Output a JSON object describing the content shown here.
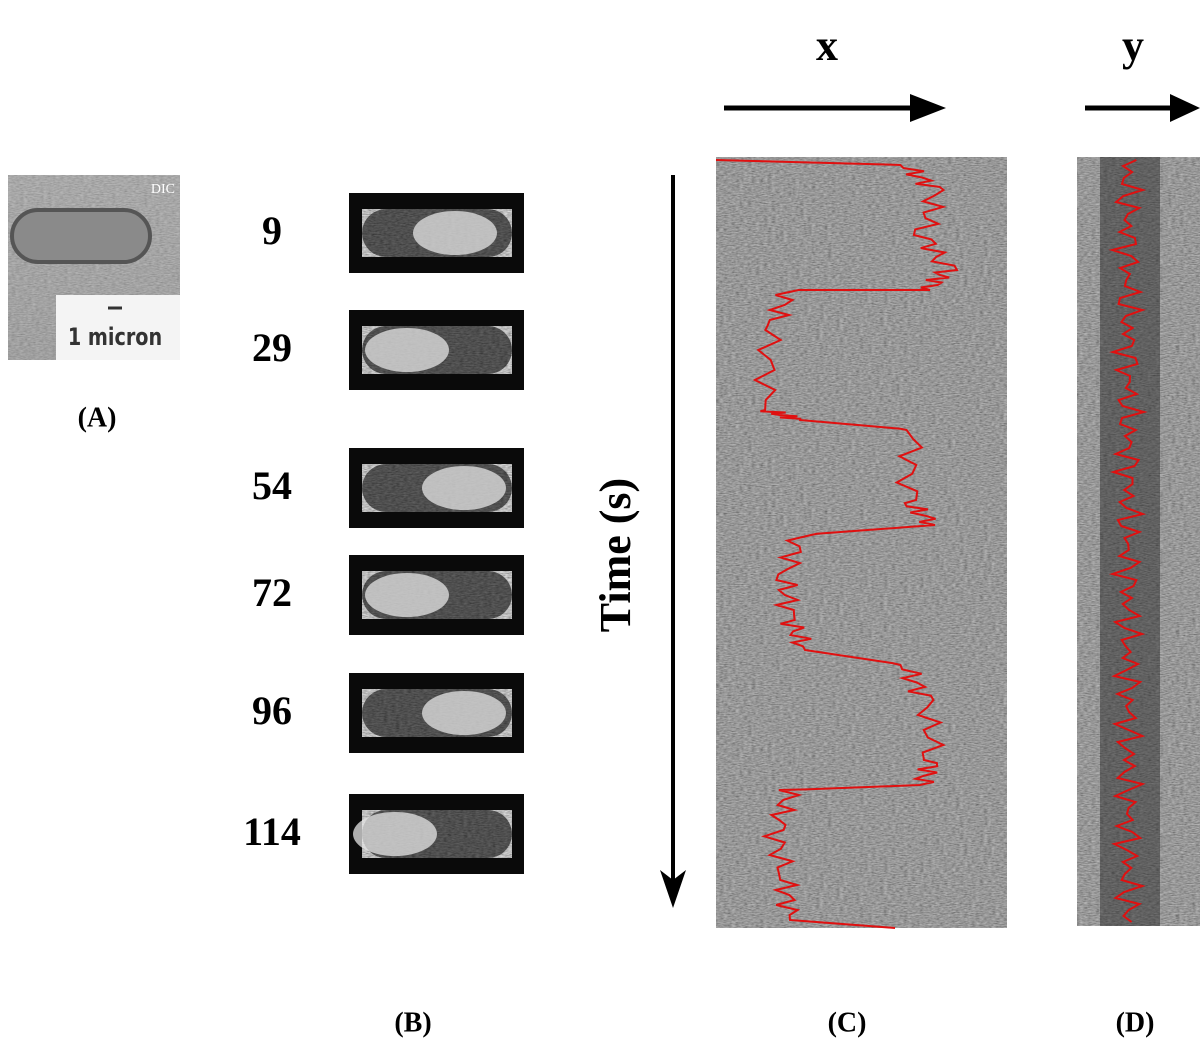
{
  "panel_a": {
    "image_label": "DIC",
    "scale_label": "1 micron",
    "label": "(A)"
  },
  "panel_b": {
    "label": "(B)",
    "times": [
      9,
      29,
      54,
      72,
      96,
      114
    ]
  },
  "time_axis_label": "Time (s)",
  "panel_c": {
    "axis_label": "x",
    "label": "(C)"
  },
  "panel_d": {
    "axis_label": "y",
    "label": "(D)"
  }
}
